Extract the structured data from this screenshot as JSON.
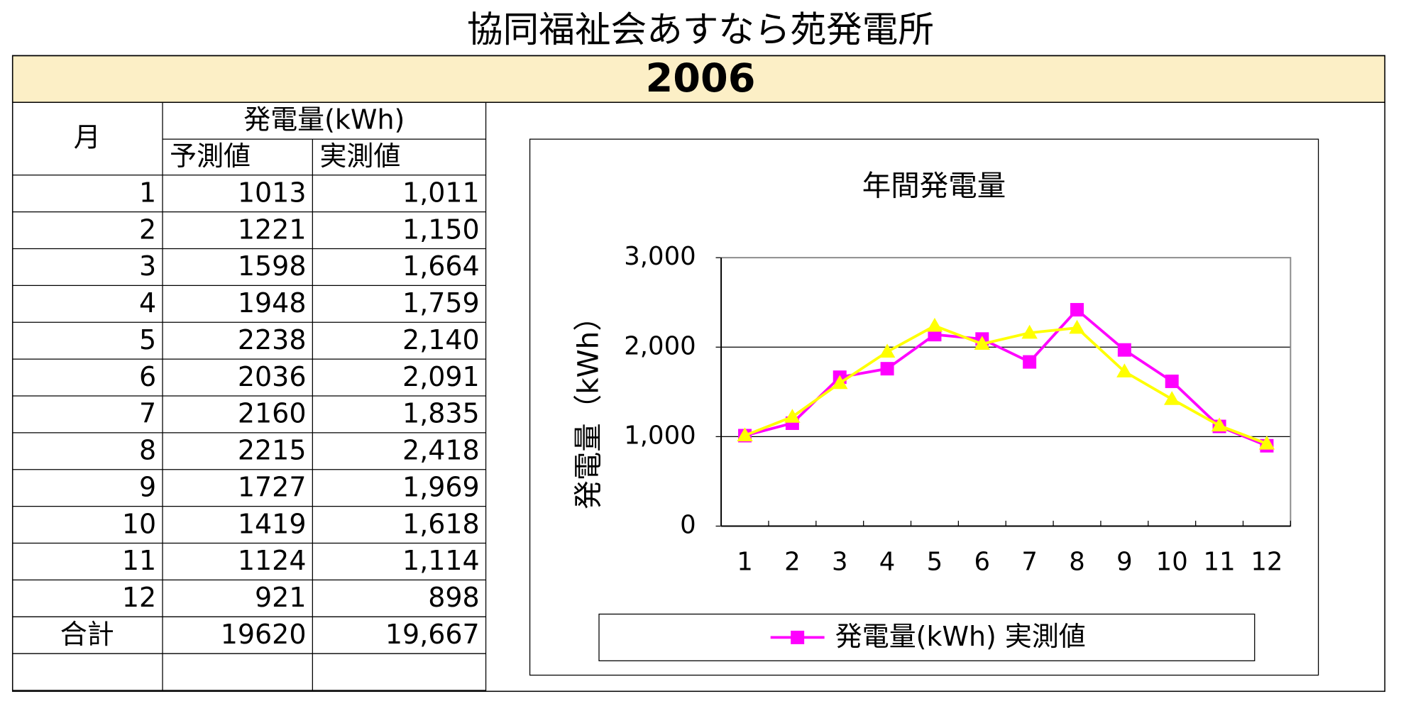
{
  "title": "協同福祉会あすなら苑発電所",
  "year": "2006",
  "table": {
    "header": {
      "month": "月",
      "group": "発電量(kWh)",
      "columns": [
        "予測値",
        "実測値"
      ]
    },
    "rows": [
      [
        "1",
        "1013",
        "1,011"
      ],
      [
        "2",
        "1221",
        "1,150"
      ],
      [
        "3",
        "1598",
        "1,664"
      ],
      [
        "4",
        "1948",
        "1,759"
      ],
      [
        "5",
        "2238",
        "2,140"
      ],
      [
        "6",
        "2036",
        "2,091"
      ],
      [
        "7",
        "2160",
        "1,835"
      ],
      [
        "8",
        "2215",
        "2,418"
      ],
      [
        "9",
        "1727",
        "1,969"
      ],
      [
        "10",
        "1419",
        "1,618"
      ],
      [
        "11",
        "1124",
        "1,114"
      ],
      [
        "12",
        "921",
        "898"
      ],
      [
        "合計",
        "19620",
        "19,667"
      ]
    ]
  },
  "chart_data": {
    "type": "line",
    "title": "年間発電量",
    "y_label": "発電量（kWh）",
    "categories": [
      "1",
      "2",
      "3",
      "4",
      "5",
      "6",
      "7",
      "8",
      "9",
      "10",
      "11",
      "12"
    ],
    "series": [
      {
        "name": "発電量(kWh) 実測値",
        "color": "#ff00ff",
        "marker": "square",
        "values": [
          1011,
          1150,
          1664,
          1759,
          2140,
          2091,
          1835,
          2418,
          1969,
          1618,
          1114,
          898
        ]
      },
      {
        "color": "#ffff00",
        "marker": "triangle",
        "values": [
          1013,
          1221,
          1598,
          1948,
          2238,
          2036,
          2160,
          2215,
          1727,
          1419,
          1124,
          921
        ]
      }
    ],
    "ylim": [
      0,
      3000
    ],
    "yticks": [
      0,
      {
        "value": 1000,
        "label": "1,000"
      },
      {
        "value": 2000,
        "label": "2,000"
      },
      {
        "value": 3000,
        "label": "3,000"
      }
    ],
    "grid": true,
    "legend": "bottom"
  }
}
